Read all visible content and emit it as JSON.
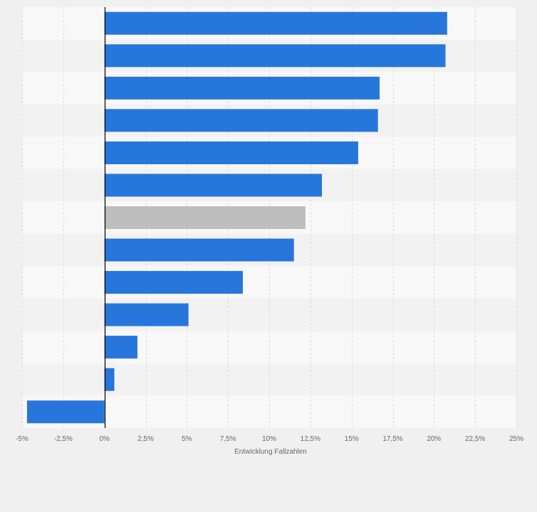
{
  "chart_data": {
    "type": "bar",
    "orientation": "horizontal",
    "categories": [
      "",
      "",
      "",
      "",
      "",
      "",
      "",
      "",
      "",
      "",
      "",
      "",
      ""
    ],
    "values": [
      20.8,
      20.7,
      16.7,
      16.6,
      15.4,
      13.2,
      12.2,
      11.5,
      8.4,
      5.1,
      2.0,
      0.6,
      -4.7
    ],
    "highlight_index": 6,
    "xlabel": "Entwicklung Fallzahlen",
    "xlim": [
      -5,
      25
    ],
    "x_ticks": [
      -5,
      -2.5,
      0,
      2.5,
      5,
      7.5,
      10,
      12.5,
      15,
      17.5,
      20,
      22.5,
      25
    ],
    "x_tick_labels": [
      "-5%",
      "-2,5%",
      "0%",
      "2,5%",
      "5%",
      "7,5%",
      "10%",
      "12,5%",
      "15%",
      "17,5%",
      "20%",
      "22,5%",
      "25%"
    ],
    "grid": true,
    "colors": {
      "bar": "#2776dc",
      "highlight": "#bebebe",
      "zero_line": "#000000",
      "grid": "#d8d8d8",
      "band_light": "#f8f8f8",
      "band_dark": "#f2f2f2",
      "background": "#f0f0f0"
    }
  }
}
